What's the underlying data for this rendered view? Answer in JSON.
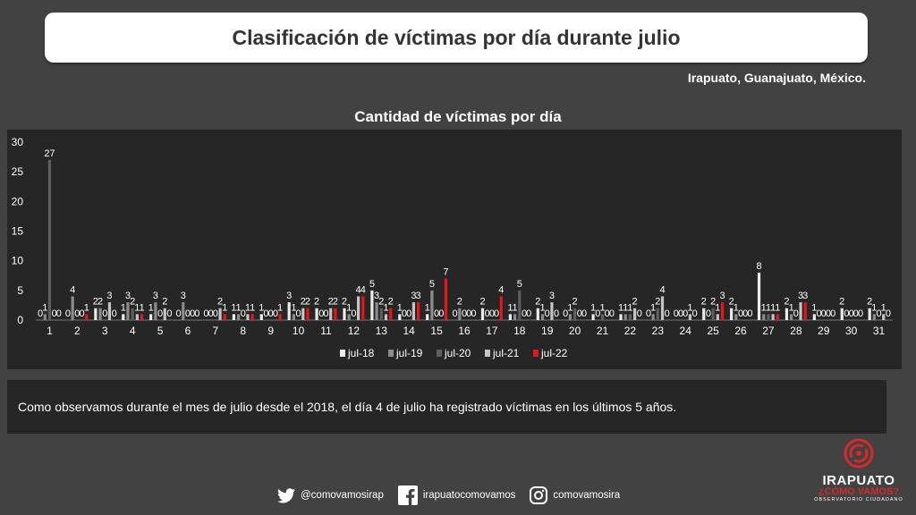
{
  "header": {
    "title": "Clasificación de víctimas por día durante julio"
  },
  "location": "Irapuato, Guanajuato, México.",
  "comment": "Como observamos durante el mes de julio desde el 2018, el día 4 de julio ha registrado víctimas en los últimos 5 años.",
  "social": {
    "twitter": "@comovamosirap",
    "facebook": "irapuatocomovamos",
    "instagram": "comovamosira"
  },
  "logo": {
    "line1": "IRAPUATO",
    "line2": "¿CÓMO VAMOS?",
    "line3": "OBSERVATORIO CIUDADANO"
  },
  "colors": {
    "jul-18": "#ececec",
    "jul-19": "#8c8c8c",
    "jul-20": "#5e5e5e",
    "jul-21": "#c4c4c4",
    "jul-22": "#e3171c",
    "accent": "#d52a2a"
  },
  "chart_data": {
    "type": "bar",
    "title": "Cantidad de víctimas por día",
    "xlabel": "",
    "ylabel": "",
    "ylim": [
      0,
      30
    ],
    "yticks": [
      0,
      5,
      10,
      15,
      20,
      25,
      30
    ],
    "legend_position": "bottom",
    "grid": false,
    "categories": [
      "1",
      "2",
      "3",
      "4",
      "5",
      "6",
      "7",
      "8",
      "9",
      "10",
      "11",
      "12",
      "13",
      "14",
      "15",
      "16",
      "17",
      "18",
      "19",
      "20",
      "21",
      "22",
      "23",
      "24",
      "25",
      "26",
      "27",
      "28",
      "29",
      "30",
      "31"
    ],
    "series": [
      {
        "name": "jul-18",
        "values": [
          0,
          0,
          2,
          1,
          1,
          0,
          0,
          1,
          1,
          3,
          2,
          2,
          5,
          1,
          1,
          0,
          2,
          1,
          2,
          0,
          1,
          1,
          0,
          0,
          2,
          2,
          8,
          2,
          1,
          2,
          2
        ]
      },
      {
        "name": "jul-19",
        "values": [
          1,
          4,
          2,
          3,
          3,
          3,
          0,
          1,
          0,
          1,
          0,
          1,
          3,
          0,
          5,
          2,
          0,
          1,
          1,
          1,
          0,
          1,
          1,
          0,
          0,
          1,
          1,
          1,
          0,
          0,
          1
        ]
      },
      {
        "name": "jul-20",
        "values": [
          27,
          0,
          0,
          2,
          0,
          0,
          0,
          0,
          0,
          0,
          0,
          0,
          2,
          0,
          0,
          0,
          0,
          5,
          0,
          2,
          1,
          1,
          2,
          0,
          2,
          0,
          1,
          0,
          0,
          0,
          0
        ]
      },
      {
        "name": "jul-21",
        "values": [
          0,
          0,
          3,
          1,
          2,
          0,
          2,
          1,
          0,
          2,
          2,
          4,
          1,
          3,
          0,
          0,
          0,
          0,
          3,
          0,
          0,
          2,
          4,
          1,
          1,
          0,
          1,
          3,
          0,
          0,
          1
        ]
      },
      {
        "name": "jul-22",
        "values": [
          0,
          1,
          0,
          1,
          0,
          0,
          1,
          1,
          1,
          2,
          2,
          4,
          2,
          3,
          7,
          0,
          4,
          0,
          0,
          0,
          0,
          0,
          0,
          0,
          3,
          0,
          1,
          3,
          0,
          0,
          0
        ]
      }
    ]
  }
}
